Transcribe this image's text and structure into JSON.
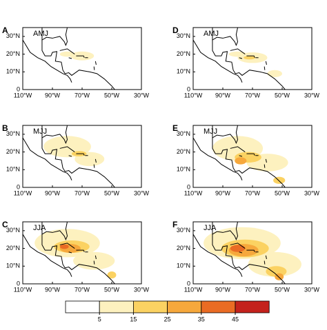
{
  "panels": [
    {
      "letter": "A",
      "season": "AMJ"
    },
    {
      "letter": "D",
      "season": "AMJ"
    },
    {
      "letter": "B",
      "season": "MJJ"
    },
    {
      "letter": "E",
      "season": "MJJ"
    },
    {
      "letter": "C",
      "season": "JJA"
    },
    {
      "letter": "F",
      "season": "JJA"
    }
  ],
  "lat_labels": [
    "0",
    "10°N",
    "20°N",
    "30°N"
  ],
  "lon_labels": [
    "110°W",
    "90°W",
    "70°W",
    "50°W",
    "30°W"
  ],
  "colorbar": {
    "ticks": [
      5,
      15,
      25,
      35,
      45
    ],
    "colors": [
      "#ffffff",
      "#fdf1bf",
      "#fbd262",
      "#f6a83c",
      "#ea6c24",
      "#c4221c"
    ]
  }
}
